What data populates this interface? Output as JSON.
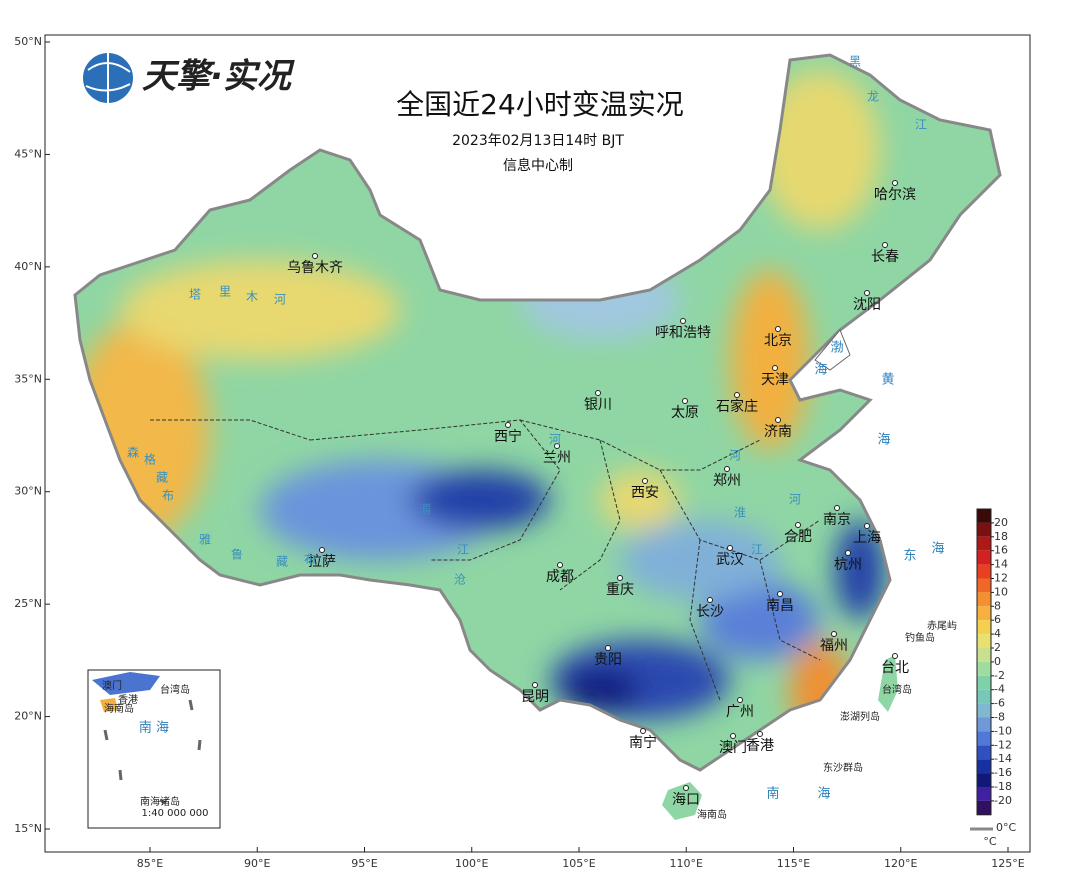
{
  "header": {
    "logo": "天擎·实况",
    "title": "全国近24小时变温实况",
    "subtitle": "2023年02月13日14时 BJT",
    "credit": "信息中心制"
  },
  "axes": {
    "lat_ticks": [
      {
        "value": 50,
        "label": "50°N"
      },
      {
        "value": 45,
        "label": "45°N"
      },
      {
        "value": 40,
        "label": "40°N"
      },
      {
        "value": 35,
        "label": "35°N"
      },
      {
        "value": 30,
        "label": "30°N"
      },
      {
        "value": 25,
        "label": "25°N"
      },
      {
        "value": 20,
        "label": "20°N"
      },
      {
        "value": 15,
        "label": "15°N"
      }
    ],
    "lon_ticks": [
      {
        "value": 85,
        "label": "85°E"
      },
      {
        "value": 90,
        "label": "90°E"
      },
      {
        "value": 95,
        "label": "95°E"
      },
      {
        "value": 100,
        "label": "100°E"
      },
      {
        "value": 105,
        "label": "105°E"
      },
      {
        "value": 110,
        "label": "110°E"
      },
      {
        "value": 115,
        "label": "115°E"
      },
      {
        "value": 120,
        "label": "120°E"
      },
      {
        "value": 125,
        "label": "125°E"
      }
    ]
  },
  "cities": [
    "乌鲁木齐",
    "呼和浩特",
    "北京",
    "天津",
    "沈阳",
    "长春",
    "哈尔滨",
    "银川",
    "太原",
    "石家庄",
    "济南",
    "西宁",
    "兰州",
    "郑州",
    "西安",
    "南京",
    "合肥",
    "上海",
    "武汉",
    "杭州",
    "成都",
    "重庆",
    "长沙",
    "南昌",
    "拉萨",
    "贵阳",
    "福州",
    "台北",
    "昆明",
    "广州",
    "南宁",
    "澳门",
    "香港",
    "海口"
  ],
  "islands": [
    "赤尾屿",
    "钓鱼岛",
    "台湾岛",
    "澎湖列岛",
    "东沙群岛",
    "海南岛"
  ],
  "seas": [
    "渤",
    "海",
    "黄",
    "海",
    "东",
    "海",
    "南",
    "海"
  ],
  "rivers": [
    "塔",
    "里",
    "木",
    "河",
    "河",
    "河",
    "淮",
    "江",
    "河",
    "黑",
    "龙",
    "江",
    "雅",
    "鲁",
    "藏",
    "布",
    "森",
    "格",
    "藏",
    "布",
    "湄",
    "沧",
    "江"
  ],
  "inset": {
    "labels": [
      "澳门",
      "香港",
      "台湾岛",
      "海南岛",
      "南 海",
      "南海诸岛",
      "1:40 000 000"
    ]
  },
  "legend": {
    "ticks": [
      20,
      18,
      16,
      14,
      12,
      10,
      8,
      6,
      4,
      2,
      0,
      -2,
      -4,
      -6,
      -8,
      -10,
      -12,
      -14,
      -16,
      -18,
      -20
    ],
    "colors": [
      "#3a0a0a",
      "#7a1010",
      "#b01818",
      "#d42020",
      "#e84020",
      "#f06828",
      "#f49030",
      "#f6b040",
      "#f4d050",
      "#e8e070",
      "#c8e090",
      "#a0dca0",
      "#80d0a8",
      "#78c8b8",
      "#80b8d0",
      "#7098d8",
      "#5078d8",
      "#3050c0",
      "#1830a0",
      "#101878",
      "#4020a0",
      "#301060"
    ],
    "unit": "°C",
    "boundary_label": "0°C"
  }
}
